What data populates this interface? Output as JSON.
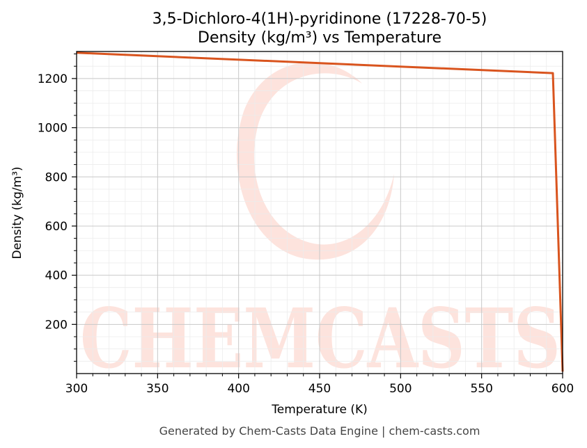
{
  "chart_data": {
    "type": "line",
    "title": "3,5-Dichloro-4(1H)-pyridinone (17228-70-5)",
    "subtitle": "Density (kg/m³) vs Temperature",
    "xlabel": "Temperature (K)",
    "ylabel": "Density (kg/m³)",
    "xlim": [
      300,
      600
    ],
    "ylim": [
      0,
      1310
    ],
    "x_ticks": [
      300,
      350,
      400,
      450,
      500,
      550,
      600
    ],
    "y_ticks": [
      200,
      400,
      600,
      800,
      1000,
      1200
    ],
    "grid": true,
    "line_color": "#d9541e",
    "series": [
      {
        "x": [
          300,
          594,
          600
        ],
        "y": [
          1305,
          1222,
          8
        ]
      }
    ]
  },
  "watermark": {
    "text": "CHEMCASTS",
    "color": "#fde3dd"
  },
  "footer": "Generated by Chem-Casts Data Engine | chem-casts.com"
}
